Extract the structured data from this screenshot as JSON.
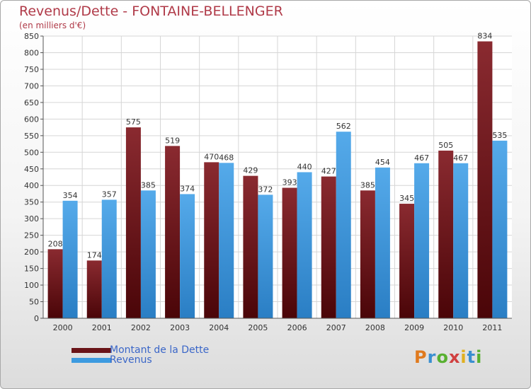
{
  "chart_data": {
    "type": "bar",
    "title": "Revenus/Dette - FONTAINE-BELLENGER",
    "subtitle": "(en milliers d'€)",
    "categories": [
      "2000",
      "2001",
      "2002",
      "2003",
      "2004",
      "2005",
      "2006",
      "2007",
      "2008",
      "2009",
      "2010",
      "2011"
    ],
    "series": [
      {
        "name": "Montant de la Dette",
        "color": "#7a2024",
        "values": [
          208,
          174,
          575,
          519,
          470,
          429,
          393,
          427,
          385,
          345,
          505,
          834
        ]
      },
      {
        "name": "Revenus",
        "color": "#3d9be0",
        "values": [
          354,
          357,
          385,
          374,
          468,
          372,
          440,
          562,
          454,
          467,
          467,
          535
        ]
      }
    ],
    "yticks": [
      0,
      50,
      100,
      150,
      200,
      250,
      300,
      350,
      400,
      450,
      500,
      550,
      600,
      650,
      700,
      750,
      800,
      850
    ],
    "ylim": [
      0,
      850
    ],
    "grid": true,
    "legend_position": "bottom-left"
  },
  "logo": {
    "letters": [
      "P",
      "r",
      "o",
      "x",
      "i",
      "t",
      "i"
    ],
    "colors": [
      "#e07a1e",
      "#3a8fd0",
      "#58b030",
      "#d04040",
      "#e0b020",
      "#3a8fd0",
      "#58b030"
    ]
  }
}
